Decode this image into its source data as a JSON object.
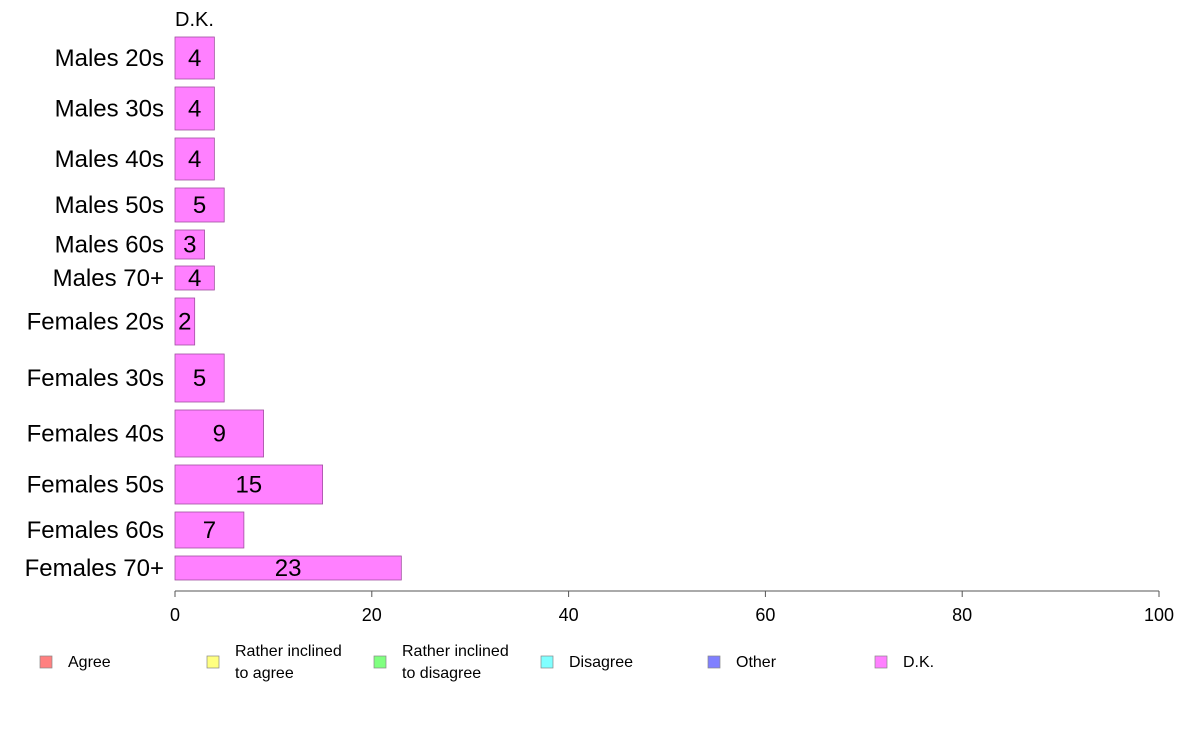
{
  "chart_data": {
    "type": "bar",
    "orientation": "horizontal",
    "series_title": "D.K.",
    "categories": [
      "Males 20s",
      "Males 30s",
      "Males 40s",
      "Males 50s",
      "Males 60s",
      "Males 70+",
      "Females 20s",
      "Females 30s",
      "Females 40s",
      "Females 50s",
      "Females 60s",
      "Females 70+"
    ],
    "series": [
      {
        "name": "D.K.",
        "color": "#ff80ff",
        "values": [
          4,
          4,
          4,
          5,
          3,
          4,
          2,
          5,
          9,
          15,
          7,
          23
        ]
      }
    ],
    "xlim": [
      0,
      100
    ],
    "xticks": [
      0,
      20,
      40,
      60,
      80,
      100
    ],
    "grid": false,
    "legend_position": "bottom",
    "legend": [
      {
        "label": [
          "Agree"
        ],
        "color": "#ff8080"
      },
      {
        "label": [
          "Rather inclined",
          "to agree"
        ],
        "color": "#ffff80"
      },
      {
        "label": [
          "Rather inclined",
          "to disagree"
        ],
        "color": "#80ff80"
      },
      {
        "label": [
          "Disagree"
        ],
        "color": "#80ffff"
      },
      {
        "label": [
          "Other"
        ],
        "color": "#8080ff"
      },
      {
        "label": [
          "D.K."
        ],
        "color": "#ff80ff"
      }
    ]
  }
}
